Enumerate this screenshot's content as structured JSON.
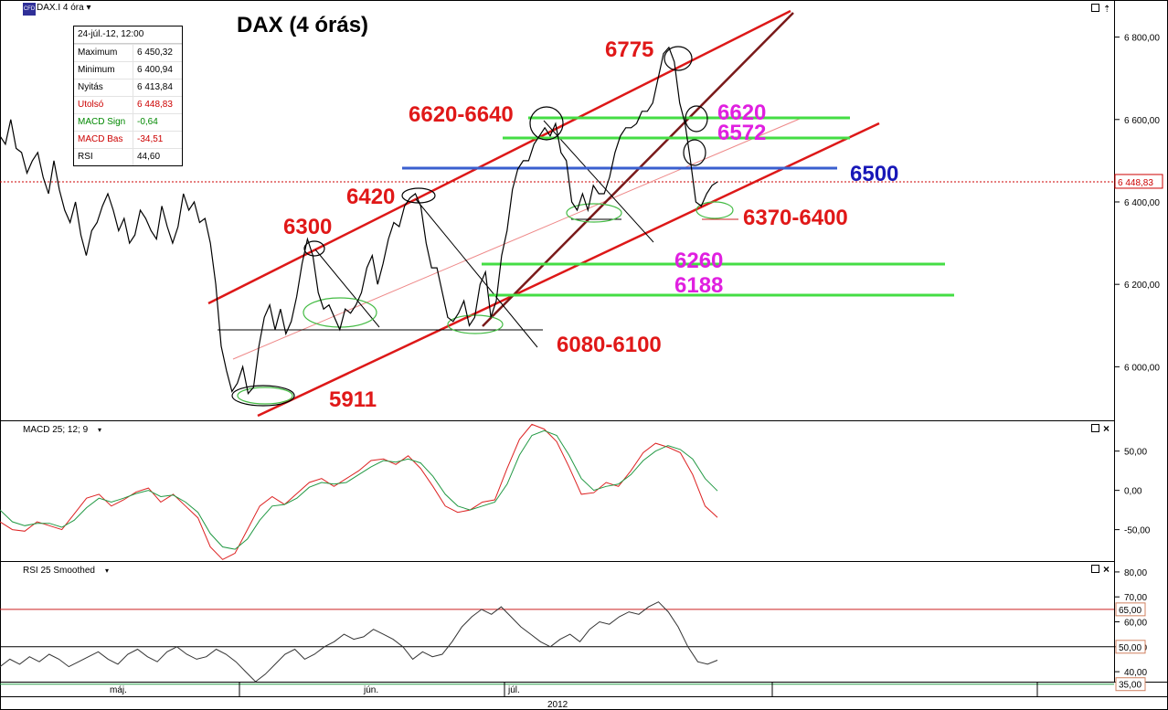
{
  "header": {
    "symbol_label": "DAX.I 4 óra",
    "logo_text": "CFD",
    "title": "DAX (4 órás)"
  },
  "ohlc_box": {
    "date": "24-júl.-12, 12:00",
    "rows": [
      {
        "label": "Maximum",
        "value": "6 450,32",
        "color": "#000000"
      },
      {
        "label": "Minimum",
        "value": "6 400,94",
        "color": "#000000"
      },
      {
        "label": "Nyitás",
        "value": "6 413,84",
        "color": "#000000"
      },
      {
        "label": "Utolsó",
        "value": "6 448,83",
        "color": "#cc0000"
      },
      {
        "label": "MACD Sign",
        "value": "-0,64",
        "color": "#008800"
      },
      {
        "label": "MACD Bas",
        "value": "-34,51",
        "color": "#cc0000"
      },
      {
        "label": "RSI",
        "value": "44,60",
        "color": "#000000"
      }
    ]
  },
  "panels": {
    "macd_label": "MACD 25; 12; 9",
    "rsi_label": "RSI 25 Smoothed"
  },
  "x_axis": {
    "labels": [
      "máj.",
      "jún.",
      "júl."
    ],
    "year": "2012"
  },
  "chart_data": [
    {
      "type": "line",
      "name": "price",
      "ylim": [
        5870,
        6890
      ],
      "y_ticks": [
        "6 000,00",
        "6 200,00",
        "6 400,00",
        "6 600,00",
        "6 800,00"
      ],
      "y_tick_values": [
        6000,
        6200,
        6400,
        6600,
        6800
      ],
      "last_price_label": "6 448,83",
      "last_price": 6448.83,
      "series": [
        {
          "values": [
            6560,
            6540,
            6600,
            6530,
            6520,
            6470,
            6500,
            6520,
            6460,
            6420,
            6500,
            6430,
            6380,
            6350,
            6400,
            6320,
            6270,
            6330,
            6350,
            6390,
            6420,
            6380,
            6330,
            6360,
            6300,
            6320,
            6380,
            6360,
            6330,
            6310,
            6390,
            6340,
            6300,
            6340,
            6420,
            6380,
            6400,
            6350,
            6360,
            6300,
            6200,
            6050,
            5990,
            5940,
            5960,
            6000,
            5935,
            5950,
            6050,
            6120,
            6150,
            6090,
            6140,
            6080,
            6110,
            6170,
            6250,
            6310,
            6270,
            6180,
            6140,
            6150,
            6120,
            6090,
            6140,
            6130,
            6150,
            6180,
            6240,
            6270,
            6200,
            6250,
            6310,
            6350,
            6340,
            6390,
            6410,
            6420,
            6390,
            6300,
            6240,
            6240,
            6180,
            6120,
            6110,
            6130,
            6160,
            6100,
            6120,
            6200,
            6230,
            6120,
            6160,
            6270,
            6330,
            6430,
            6480,
            6500,
            6500,
            6540,
            6560,
            6580,
            6560,
            6590,
            6520,
            6500,
            6400,
            6380,
            6420,
            6380,
            6440,
            6420,
            6420,
            6460,
            6520,
            6560,
            6580,
            6580,
            6590,
            6620,
            6620,
            6640,
            6700,
            6760,
            6775,
            6740,
            6640,
            6590,
            6500,
            6400,
            6390,
            6420,
            6440,
            6448.83
          ]
        }
      ]
    },
    {
      "type": "line",
      "name": "macd",
      "ylim": [
        -90,
        88
      ],
      "y_ticks": [
        "-50,00",
        "0,00",
        "50,00"
      ],
      "y_tick_values": [
        -50,
        0,
        50
      ],
      "series": [
        {
          "name": "MACD Bas",
          "color": "#dd2222",
          "values": [
            -40,
            -50,
            -52,
            -40,
            -45,
            -50,
            -30,
            -10,
            -5,
            -20,
            -12,
            -2,
            3,
            -15,
            -5,
            -20,
            -35,
            -72,
            -88,
            -80,
            -50,
            -20,
            -8,
            -18,
            -4,
            10,
            15,
            5,
            15,
            25,
            38,
            40,
            33,
            44,
            28,
            5,
            -20,
            -28,
            -25,
            -15,
            -12,
            28,
            65,
            84,
            78,
            62,
            30,
            -5,
            -3,
            10,
            5,
            25,
            48,
            60,
            55,
            48,
            20,
            -20,
            -34.51
          ]
        },
        {
          "name": "MACD Sign",
          "color": "#229944",
          "values": [
            -25,
            -40,
            -45,
            -42,
            -42,
            -47,
            -38,
            -22,
            -10,
            -15,
            -10,
            -4,
            0,
            -8,
            -6,
            -15,
            -28,
            -55,
            -72,
            -75,
            -62,
            -38,
            -20,
            -18,
            -10,
            4,
            10,
            8,
            10,
            20,
            30,
            38,
            36,
            40,
            35,
            18,
            -5,
            -20,
            -25,
            -20,
            -15,
            8,
            45,
            70,
            76,
            70,
            45,
            15,
            0,
            5,
            8,
            20,
            38,
            50,
            57,
            52,
            40,
            15,
            -0.64
          ]
        }
      ]
    },
    {
      "type": "line",
      "name": "rsi",
      "ylim": [
        36,
        84
      ],
      "y_ticks": [
        "40,00",
        "50,00",
        "60,00",
        "70,00",
        "80,00"
      ],
      "y_tick_values": [
        40,
        50,
        60,
        70,
        80
      ],
      "levels": [
        {
          "label": "65,00",
          "value": 65,
          "color": "#cc2222"
        },
        {
          "label": "50,00",
          "value": 50,
          "color": "#000000"
        },
        {
          "label": "35,00",
          "value": 35,
          "color": "#229944"
        }
      ],
      "series": [
        {
          "name": "RSI",
          "color": "#333333",
          "values": [
            42,
            45,
            43,
            46,
            44,
            47,
            45,
            42,
            44,
            46,
            48,
            45,
            43,
            47,
            49,
            46,
            44,
            48,
            50,
            47,
            45,
            46,
            49,
            47,
            44,
            40,
            36,
            39,
            43,
            47,
            49,
            45,
            47,
            50,
            52,
            55,
            53,
            54,
            57,
            55,
            53,
            50,
            45,
            48,
            46,
            47,
            52,
            58,
            62,
            65,
            63,
            66,
            62,
            58,
            55,
            52,
            50,
            53,
            55,
            52,
            57,
            60,
            59,
            62,
            64,
            63,
            66,
            68,
            64,
            58,
            50,
            44,
            43,
            44.6
          ]
        }
      ]
    }
  ],
  "annotations": {
    "horizontal_levels": [
      {
        "label": "6620",
        "value": 6620,
        "color": "#e020e0"
      },
      {
        "label": "6572",
        "value": 6572,
        "color": "#e020e0"
      },
      {
        "label": "6500",
        "value": 6500,
        "color": "#1818b8"
      },
      {
        "label": "6260",
        "value": 6260,
        "color": "#e020e0"
      },
      {
        "label": "6188",
        "value": 6188,
        "color": "#e020e0"
      }
    ],
    "price_labels": [
      {
        "label": "6775",
        "color": "#e01818"
      },
      {
        "label": "6620-6640",
        "color": "#e01818"
      },
      {
        "label": "6420",
        "color": "#e01818"
      },
      {
        "label": "6300",
        "color": "#e01818"
      },
      {
        "label": "6370-6400",
        "color": "#e01818"
      },
      {
        "label": "6080-6100",
        "color": "#e01818"
      },
      {
        "label": "5911",
        "color": "#e01818"
      }
    ]
  }
}
